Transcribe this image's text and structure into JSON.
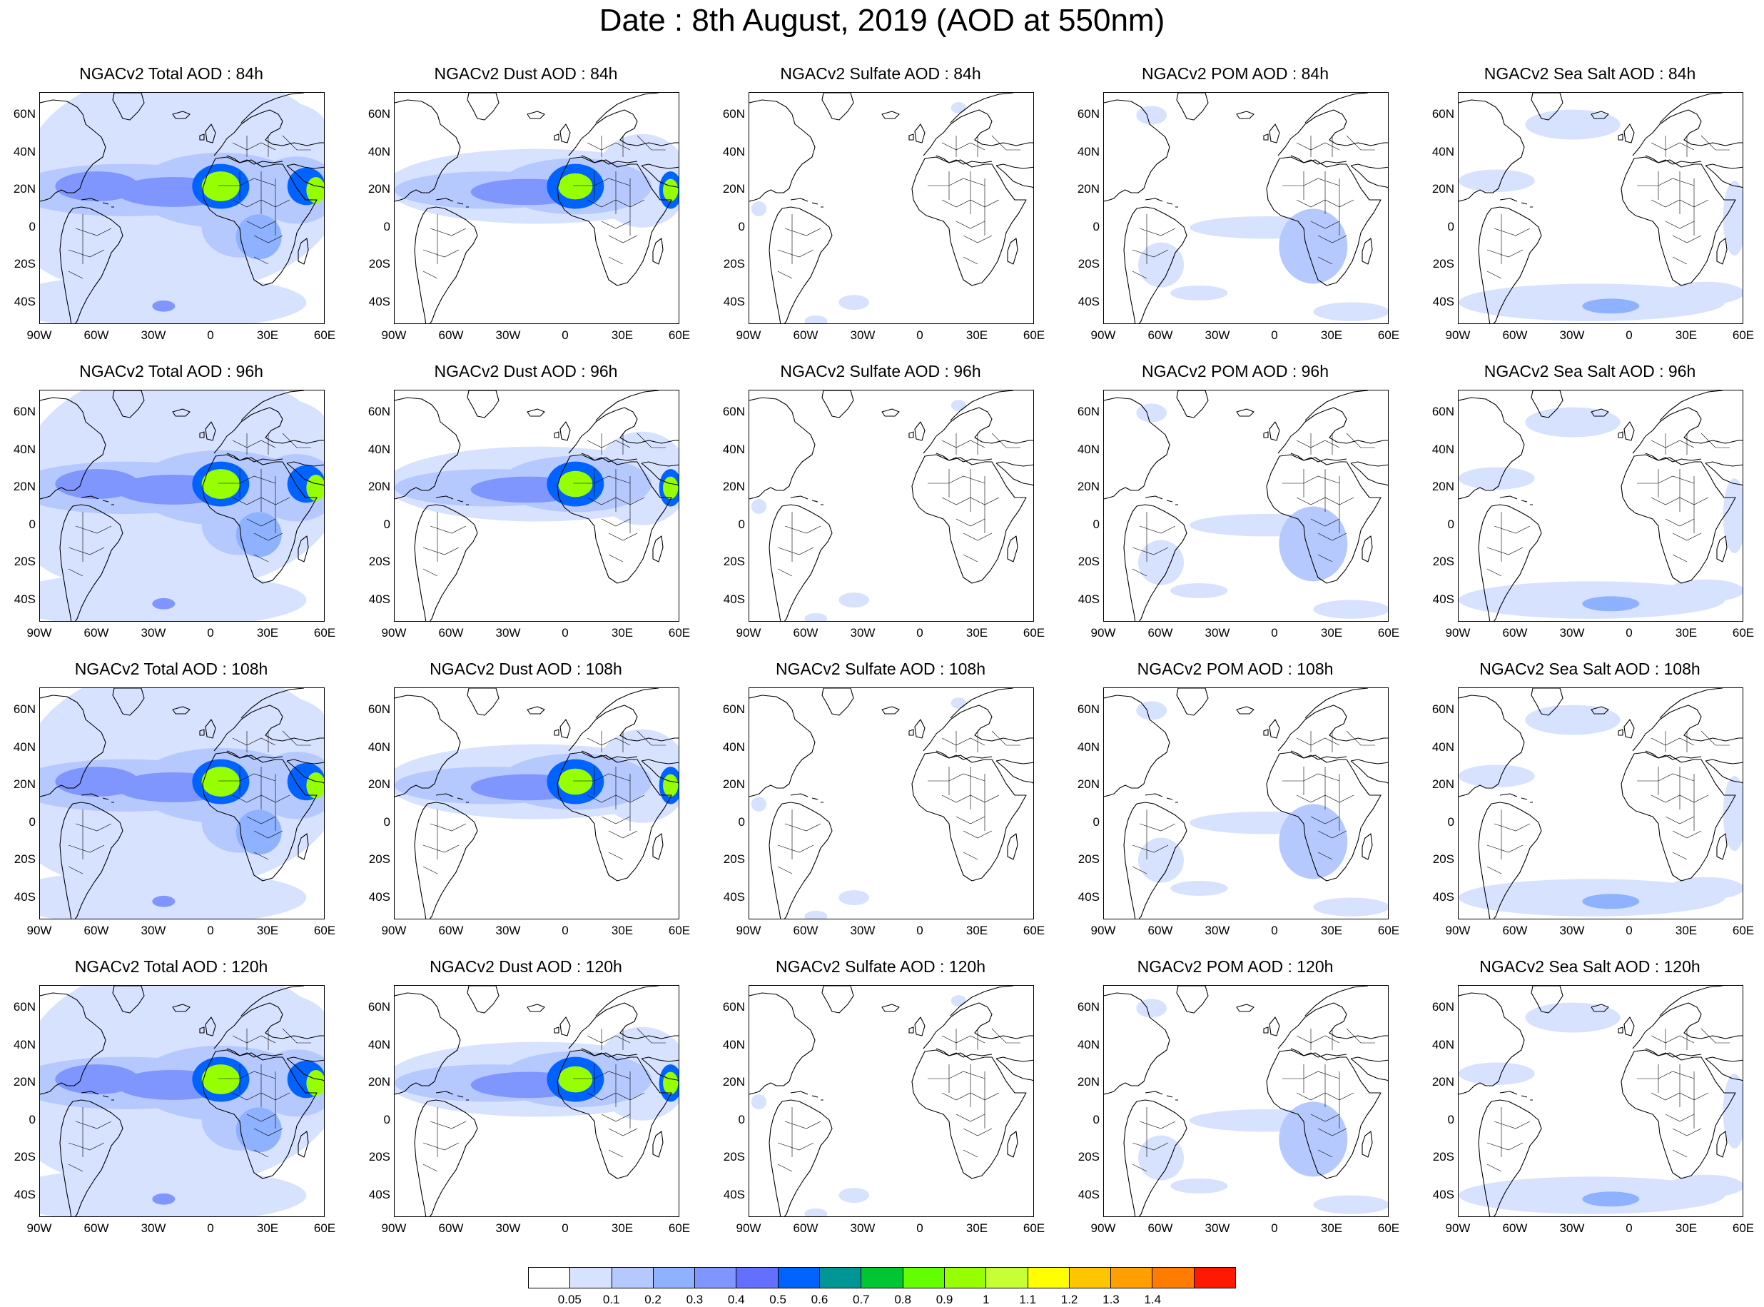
{
  "title": "Date : 8th August, 2019 (AOD at 550nm)",
  "map": {
    "lon_ticks": [
      "90W",
      "60W",
      "30W",
      "0",
      "30E",
      "60E"
    ],
    "lat_ticks": [
      "60N",
      "40N",
      "20N",
      "0",
      "20S",
      "40S"
    ],
    "lon_range": [
      -90,
      60
    ],
    "lat_range": [
      -52,
      72
    ]
  },
  "panels": [
    {
      "title": "NGACv2 Total AOD : 84h",
      "species": "total",
      "lead": 84
    },
    {
      "title": "NGACv2 Dust AOD : 84h",
      "species": "dust",
      "lead": 84
    },
    {
      "title": "NGACv2 Sulfate AOD : 84h",
      "species": "sulfate",
      "lead": 84
    },
    {
      "title": "NGACv2 POM AOD : 84h",
      "species": "pom",
      "lead": 84
    },
    {
      "title": "NGACv2 Sea Salt AOD : 84h",
      "species": "seasalt",
      "lead": 84
    },
    {
      "title": "NGACv2 Total AOD : 96h",
      "species": "total",
      "lead": 96
    },
    {
      "title": "NGACv2 Dust AOD : 96h",
      "species": "dust",
      "lead": 96
    },
    {
      "title": "NGACv2 Sulfate AOD : 96h",
      "species": "sulfate",
      "lead": 96
    },
    {
      "title": "NGACv2 POM AOD : 96h",
      "species": "pom",
      "lead": 96
    },
    {
      "title": "NGACv2 Sea Salt AOD : 96h",
      "species": "seasalt",
      "lead": 96
    },
    {
      "title": "NGACv2 Total AOD : 108h",
      "species": "total",
      "lead": 108
    },
    {
      "title": "NGACv2 Dust AOD : 108h",
      "species": "dust",
      "lead": 108
    },
    {
      "title": "NGACv2 Sulfate AOD : 108h",
      "species": "sulfate",
      "lead": 108
    },
    {
      "title": "NGACv2 POM AOD : 108h",
      "species": "pom",
      "lead": 108
    },
    {
      "title": "NGACv2 Sea Salt AOD : 108h",
      "species": "seasalt",
      "lead": 108
    },
    {
      "title": "NGACv2 Total AOD : 120h",
      "species": "total",
      "lead": 120
    },
    {
      "title": "NGACv2 Dust AOD : 120h",
      "species": "dust",
      "lead": 120
    },
    {
      "title": "NGACv2 Sulfate AOD : 120h",
      "species": "sulfate",
      "lead": 120
    },
    {
      "title": "NGACv2 POM AOD : 120h",
      "species": "pom",
      "lead": 120
    },
    {
      "title": "NGACv2 Sea Salt  AOD : 120h",
      "species": "seasalt",
      "lead": 120
    }
  ],
  "colorbar": {
    "colors": [
      "#ffffff",
      "#d6e2ff",
      "#b5c9ff",
      "#8eb2ff",
      "#7f96ff",
      "#6370ff",
      "#0063ff",
      "#009696",
      "#00c633",
      "#63ff00",
      "#96ff00",
      "#c6ff33",
      "#ffff00",
      "#ffc600",
      "#ffa000",
      "#ff7c00",
      "#ff1900"
    ],
    "labels": [
      "0.05",
      "0.1",
      "0.2",
      "0.3",
      "0.4",
      "0.5",
      "0.6",
      "0.7",
      "0.8",
      "0.9",
      "1",
      "1.1",
      "1.2",
      "1.3",
      "1.4"
    ]
  }
}
